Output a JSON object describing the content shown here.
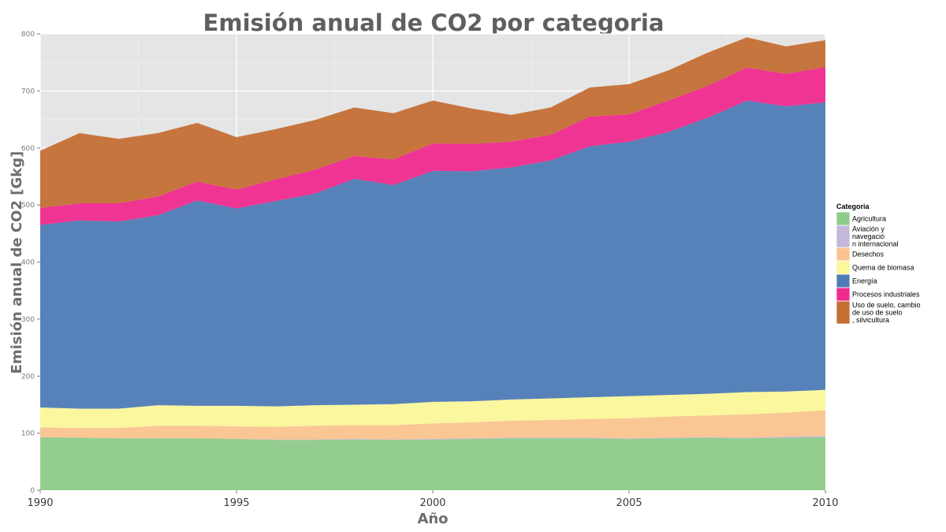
{
  "chart_data": {
    "type": "area",
    "stacked": true,
    "title": "Emisión anual de CO2 por categoria",
    "xlabel": "Año",
    "ylabel": "Emisión anual de CO2 [Gkg]",
    "xlim": [
      1990,
      2010
    ],
    "ylim": [
      0,
      800
    ],
    "x_ticks": [
      1990,
      1995,
      2000,
      2005,
      2010
    ],
    "y_ticks": [
      0,
      100,
      200,
      300,
      400,
      500,
      600,
      700,
      800
    ],
    "grid": true,
    "legend_position": "right",
    "legend_title": "Categoria",
    "x": [
      1990,
      1991,
      1992,
      1993,
      1994,
      1995,
      1996,
      1997,
      1998,
      1999,
      2000,
      2001,
      2002,
      2003,
      2004,
      2005,
      2006,
      2007,
      2008,
      2009,
      2010
    ],
    "series": [
      {
        "name": "Agricultura",
        "color": "#8fcc8a",
        "values": [
          93,
          92,
          91,
          91,
          91,
          90,
          88,
          88,
          89,
          88,
          89,
          90,
          91,
          91,
          91,
          90,
          91,
          92,
          91,
          92,
          93
        ]
      },
      {
        "name": "Aviación y navegación internacional",
        "color": "#c4b8da",
        "values": [
          0,
          0,
          0,
          0,
          0,
          0,
          1,
          1,
          1,
          1,
          1,
          1,
          1,
          1,
          1,
          1,
          1,
          1,
          1,
          2,
          2
        ]
      },
      {
        "name": "Desechos",
        "color": "#fbc48f",
        "values": [
          17,
          17,
          18,
          22,
          22,
          22,
          22,
          24,
          24,
          25,
          27,
          28,
          30,
          31,
          33,
          35,
          37,
          38,
          41,
          42,
          45
        ]
      },
      {
        "name": "Quema de biomasa",
        "color": "#fbf89b",
        "values": [
          35,
          34,
          34,
          36,
          35,
          36,
          36,
          36,
          36,
          37,
          38,
          37,
          37,
          38,
          38,
          39,
          38,
          38,
          39,
          37,
          36
        ]
      },
      {
        "name": "Energía",
        "color": "#4f7cb6",
        "values": [
          320,
          330,
          328,
          333,
          360,
          346,
          360,
          371,
          396,
          384,
          405,
          403,
          407,
          417,
          440,
          446,
          461,
          484,
          511,
          500,
          504
        ]
      },
      {
        "name": "Procesos industriales",
        "color": "#ef2a8e",
        "values": [
          30,
          30,
          32,
          33,
          33,
          33,
          38,
          42,
          40,
          45,
          48,
          48,
          45,
          45,
          52,
          48,
          55,
          56,
          58,
          57,
          62
        ]
      },
      {
        "name": "Uso de suelo, cambio de uso de suelo, silvicultura",
        "color": "#c56f35",
        "values": [
          100,
          123,
          113,
          111,
          103,
          92,
          88,
          87,
          85,
          81,
          75,
          62,
          47,
          48,
          51,
          53,
          53,
          58,
          53,
          48,
          47
        ]
      }
    ]
  }
}
